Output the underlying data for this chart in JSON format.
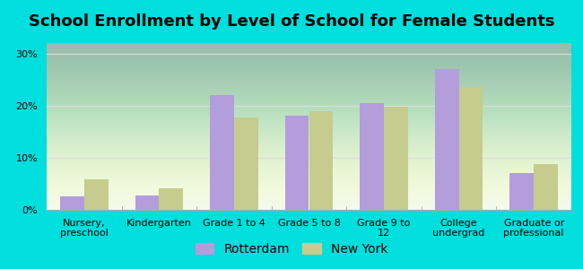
{
  "title": "School Enrollment by Level of School for Female Students",
  "categories": [
    "Nursery,\npreschool",
    "Kindergarten",
    "Grade 1 to 4",
    "Grade 5 to 8",
    "Grade 9 to\n12",
    "College\nundergrad",
    "Graduate or\nprofessional"
  ],
  "rotterdam": [
    2.5,
    2.8,
    22.0,
    18.0,
    20.5,
    27.0,
    7.0
  ],
  "new_york": [
    5.8,
    4.2,
    17.8,
    19.0,
    19.8,
    23.5,
    8.8
  ],
  "rotterdam_color": "#b39ddb",
  "new_york_color": "#c5cc8e",
  "ylim": [
    0,
    32
  ],
  "yticks": [
    0,
    10,
    20,
    30
  ],
  "ytick_labels": [
    "0%",
    "10%",
    "20%",
    "30%"
  ],
  "outer_bg": "#00dede",
  "grid_color": "#dddddd",
  "legend_rotterdam": "Rotterdam",
  "legend_new_york": "New York",
  "title_fontsize": 13,
  "tick_fontsize": 8,
  "legend_fontsize": 10,
  "bar_width": 0.32
}
